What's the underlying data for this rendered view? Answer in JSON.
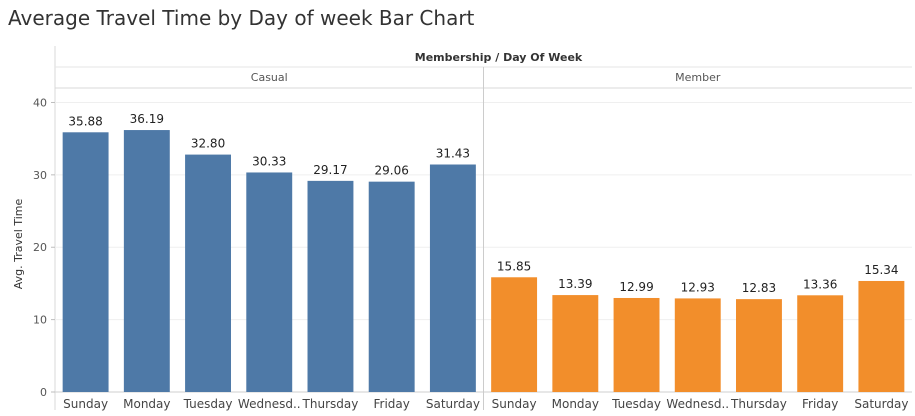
{
  "title": "Average Travel Time by Day of week Bar Chart",
  "chart_data": {
    "type": "bar",
    "column_header": "Membership / Day Of Week",
    "ylabel": "Avg. Travel Time",
    "ylim": [
      0,
      42
    ],
    "yticks": [
      0,
      10,
      20,
      30,
      40
    ],
    "grid": true,
    "groups": [
      {
        "name": "Casual",
        "color": "#4e79a7",
        "categories": [
          "Sunday",
          "Monday",
          "Tuesday",
          "Wednesd..",
          "Thursday",
          "Friday",
          "Saturday"
        ],
        "values": [
          35.88,
          36.19,
          32.8,
          30.33,
          29.17,
          29.06,
          31.43
        ],
        "labels": [
          "35.88",
          "36.19",
          "32.80",
          "30.33",
          "29.17",
          "29.06",
          "31.43"
        ]
      },
      {
        "name": "Member",
        "color": "#f28e2b",
        "categories": [
          "Sunday",
          "Monday",
          "Tuesday",
          "Wednesd..",
          "Thursday",
          "Friday",
          "Saturday"
        ],
        "values": [
          15.85,
          13.39,
          12.99,
          12.93,
          12.83,
          13.36,
          15.34
        ],
        "labels": [
          "15.85",
          "13.39",
          "12.99",
          "12.93",
          "12.83",
          "13.36",
          "15.34"
        ]
      }
    ]
  }
}
